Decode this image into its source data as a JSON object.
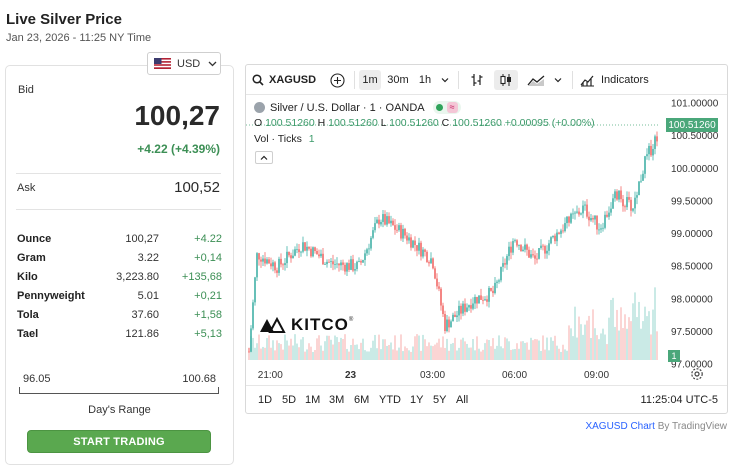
{
  "header": {
    "title": "Live Silver Price",
    "timestamp": "Jan 23, 2026 - 11:25 NY Time"
  },
  "currency_selector": {
    "value": "USD",
    "flag_icon": "us-flag-icon"
  },
  "quote": {
    "bid_label": "Bid",
    "bid": "100,27",
    "change": "+4.22 (+4.39%)",
    "ask_label": "Ask",
    "ask": "100,52",
    "positive_color": "#3c8f55"
  },
  "units": [
    {
      "name": "Ounce",
      "price": "100,27",
      "change": "+4.22"
    },
    {
      "name": "Gram",
      "price": "3.22",
      "change": "+0,14"
    },
    {
      "name": "Kilo",
      "price": "3,223.80",
      "change": "+135,68"
    },
    {
      "name": "Pennyweight",
      "price": "5.01",
      "change": "+0,21"
    },
    {
      "name": "Tola",
      "price": "37.60",
      "change": "+1,58"
    },
    {
      "name": "Tael",
      "price": "121.86",
      "change": "+5,13"
    }
  ],
  "days_range": {
    "low": "96.05",
    "high": "100.68",
    "label": "Day's Range"
  },
  "cta": {
    "label": "START TRADING",
    "color": "#5aa84f"
  },
  "chart_widget": {
    "toolbar": {
      "symbol": "XAGUSD",
      "intervals": [
        "1m",
        "30m",
        "1h"
      ],
      "active_interval": "1m",
      "indicators_label": "Indicators"
    },
    "legend": {
      "title": "Silver / U.S. Dollar · 1 · OANDA",
      "open_key": "O",
      "open": "100.51260",
      "high_key": "H",
      "high": "100.51260",
      "low_key": "L",
      "low": "100.51260",
      "close_key": "C",
      "close": "100.51260",
      "change": "+0.00095 (+0.00%)",
      "vol_label": "Vol · Ticks",
      "vol_value": "1"
    },
    "current_price_tag": "100.51260",
    "volume_tag": "1",
    "watermark": "KITCO",
    "watermark_reg": "®",
    "range_buttons": [
      "1D",
      "5D",
      "1M",
      "3M",
      "6M",
      "YTD",
      "1Y",
      "5Y",
      "All"
    ],
    "clock": "11:25:04 UTC-5",
    "up_color": "#26a69a",
    "down_color": "#ef5350"
  },
  "chart_data": {
    "type": "candlestick",
    "x_tick_labels": [
      "21:00",
      "23",
      "03:00",
      "06:00",
      "09:00"
    ],
    "y_tick_labels": [
      "101.00000",
      "100.50000",
      "100.00000",
      "99.50000",
      "99.00000",
      "98.50000",
      "98.00000",
      "97.50000",
      "97.00000"
    ],
    "ylim": [
      96.75,
      101.1
    ],
    "price_path_anchors": [
      {
        "t": 0,
        "p": 97.2
      },
      {
        "t": 0.02,
        "p": 98.7
      },
      {
        "t": 0.07,
        "p": 98.5
      },
      {
        "t": 0.13,
        "p": 98.85
      },
      {
        "t": 0.2,
        "p": 98.55
      },
      {
        "t": 0.27,
        "p": 98.5
      },
      {
        "t": 0.32,
        "p": 99.25
      },
      {
        "t": 0.38,
        "p": 99.0
      },
      {
        "t": 0.45,
        "p": 98.6
      },
      {
        "t": 0.48,
        "p": 97.6
      },
      {
        "t": 0.55,
        "p": 98.0
      },
      {
        "t": 0.6,
        "p": 98.1
      },
      {
        "t": 0.65,
        "p": 98.95
      },
      {
        "t": 0.7,
        "p": 98.6
      },
      {
        "t": 0.76,
        "p": 99.05
      },
      {
        "t": 0.82,
        "p": 99.4
      },
      {
        "t": 0.86,
        "p": 99.1
      },
      {
        "t": 0.9,
        "p": 99.6
      },
      {
        "t": 0.94,
        "p": 99.4
      },
      {
        "t": 0.97,
        "p": 100.1
      },
      {
        "t": 1.0,
        "p": 100.51
      }
    ],
    "current_price": 100.5126,
    "grid": false,
    "legend_position": "top-left"
  }
}
